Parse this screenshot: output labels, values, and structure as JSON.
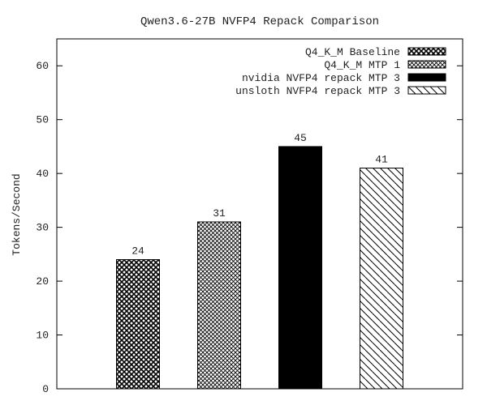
{
  "chart_data": {
    "type": "bar",
    "title": "Qwen3.6-27B NVFP4 Repack Comparison",
    "xlabel": "",
    "ylabel": "Tokens/Second",
    "ylim": [
      0,
      65
    ],
    "yticks": [
      0,
      10,
      20,
      30,
      40,
      50,
      60
    ],
    "grid": false,
    "legend_position": "top-right",
    "series": [
      {
        "name": "Q4_K_M Baseline",
        "value": 24,
        "label": "24",
        "pattern": "dense-crosshatch",
        "color": "#000000"
      },
      {
        "name": "Q4_K_M MTP 1",
        "value": 31,
        "label": "31",
        "pattern": "crosshatch",
        "color": "#000000"
      },
      {
        "name": "nvidia NVFP4 repack MTP 3",
        "value": 45,
        "label": "45",
        "pattern": "solid",
        "color": "#000000"
      },
      {
        "name": "unsloth NVFP4 repack MTP 3",
        "value": 41,
        "label": "41",
        "pattern": "diagonal-lines",
        "color": "#000000"
      }
    ]
  }
}
